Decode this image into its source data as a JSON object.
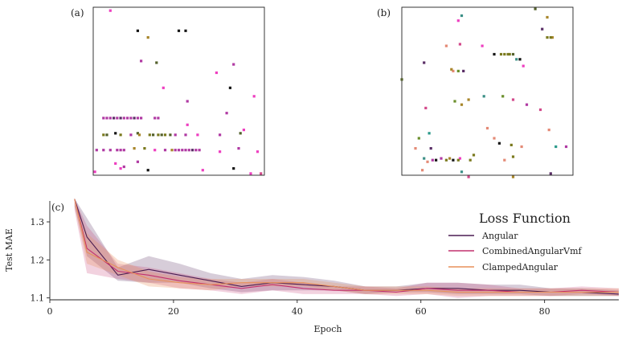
{
  "panels": {
    "a": {
      "label": "(a)"
    },
    "b": {
      "label": "(b)"
    },
    "c": {
      "label": "(c)"
    }
  },
  "colors": {
    "Angular": "#4b1d52",
    "CombinedAngularVmf": "#c2306f",
    "ClampedAngular": "#e8915a",
    "dot_palette": [
      "#b03aa3",
      "#ee3fc0",
      "#54612c",
      "#7b7a1f",
      "#141414",
      "#a8862b",
      "#3b8f86",
      "#e48a76",
      "#5a2e66",
      "#d34a8b",
      "#6b8f2c",
      "#2b9a8a"
    ]
  },
  "chart_data": [
    {
      "type": "scatter",
      "panel": "a",
      "title": "",
      "xlabel": "",
      "ylabel": "",
      "grid": false,
      "axes_visible": false,
      "xlim": [
        0,
        100
      ],
      "ylim": [
        0,
        100
      ],
      "points": [
        {
          "x": 10,
          "y": 98,
          "c": 1
        },
        {
          "x": 26,
          "y": 86,
          "c": 4
        },
        {
          "x": 50,
          "y": 86,
          "c": 4
        },
        {
          "x": 54,
          "y": 86,
          "c": 4
        },
        {
          "x": 32,
          "y": 82,
          "c": 5
        },
        {
          "x": 28,
          "y": 68,
          "c": 0
        },
        {
          "x": 37,
          "y": 67,
          "c": 2
        },
        {
          "x": 72,
          "y": 61,
          "c": 1
        },
        {
          "x": 82,
          "y": 66,
          "c": 0
        },
        {
          "x": 94,
          "y": 47,
          "c": 1
        },
        {
          "x": 80,
          "y": 52,
          "c": 4
        },
        {
          "x": 41,
          "y": 52,
          "c": 1
        },
        {
          "x": 55,
          "y": 44,
          "c": 0
        },
        {
          "x": 78,
          "y": 37,
          "c": 0
        },
        {
          "x": 6,
          "y": 34,
          "c": 0
        },
        {
          "x": 8,
          "y": 34,
          "c": 0
        },
        {
          "x": 10,
          "y": 34,
          "c": 0
        },
        {
          "x": 12,
          "y": 34,
          "c": 8
        },
        {
          "x": 14,
          "y": 34,
          "c": 0
        },
        {
          "x": 16,
          "y": 34,
          "c": 8
        },
        {
          "x": 18,
          "y": 34,
          "c": 0
        },
        {
          "x": 20,
          "y": 34,
          "c": 0
        },
        {
          "x": 22,
          "y": 34,
          "c": 0
        },
        {
          "x": 24,
          "y": 34,
          "c": 8
        },
        {
          "x": 26,
          "y": 34,
          "c": 0
        },
        {
          "x": 28,
          "y": 34,
          "c": 0
        },
        {
          "x": 36,
          "y": 34,
          "c": 0
        },
        {
          "x": 38,
          "y": 34,
          "c": 0
        },
        {
          "x": 55,
          "y": 30,
          "c": 1
        },
        {
          "x": 88,
          "y": 27,
          "c": 1
        },
        {
          "x": 6,
          "y": 24,
          "c": 3
        },
        {
          "x": 8,
          "y": 24,
          "c": 2
        },
        {
          "x": 13,
          "y": 25,
          "c": 4
        },
        {
          "x": 16,
          "y": 24,
          "c": 3
        },
        {
          "x": 22,
          "y": 24,
          "c": 0
        },
        {
          "x": 26,
          "y": 25,
          "c": 2
        },
        {
          "x": 27,
          "y": 24,
          "c": 5
        },
        {
          "x": 33,
          "y": 24,
          "c": 3
        },
        {
          "x": 35,
          "y": 24,
          "c": 2
        },
        {
          "x": 38,
          "y": 24,
          "c": 3
        },
        {
          "x": 40,
          "y": 24,
          "c": 2
        },
        {
          "x": 42,
          "y": 24,
          "c": 3
        },
        {
          "x": 45,
          "y": 24,
          "c": 2
        },
        {
          "x": 48,
          "y": 24,
          "c": 0
        },
        {
          "x": 54,
          "y": 24,
          "c": 0
        },
        {
          "x": 61,
          "y": 24,
          "c": 1
        },
        {
          "x": 74,
          "y": 24,
          "c": 0
        },
        {
          "x": 86,
          "y": 25,
          "c": 2
        },
        {
          "x": 2,
          "y": 15,
          "c": 0
        },
        {
          "x": 6,
          "y": 15,
          "c": 0
        },
        {
          "x": 10,
          "y": 15,
          "c": 0
        },
        {
          "x": 14,
          "y": 15,
          "c": 0
        },
        {
          "x": 16,
          "y": 15,
          "c": 0
        },
        {
          "x": 18,
          "y": 15,
          "c": 0
        },
        {
          "x": 24,
          "y": 16,
          "c": 5
        },
        {
          "x": 30,
          "y": 16,
          "c": 3
        },
        {
          "x": 36,
          "y": 15,
          "c": 1
        },
        {
          "x": 42,
          "y": 15,
          "c": 0
        },
        {
          "x": 46,
          "y": 15,
          "c": 5
        },
        {
          "x": 48,
          "y": 15,
          "c": 0
        },
        {
          "x": 50,
          "y": 15,
          "c": 0
        },
        {
          "x": 52,
          "y": 15,
          "c": 0
        },
        {
          "x": 54,
          "y": 15,
          "c": 0
        },
        {
          "x": 56,
          "y": 15,
          "c": 0
        },
        {
          "x": 58,
          "y": 15,
          "c": 8
        },
        {
          "x": 60,
          "y": 15,
          "c": 0
        },
        {
          "x": 62,
          "y": 15,
          "c": 0
        },
        {
          "x": 74,
          "y": 14,
          "c": 1
        },
        {
          "x": 85,
          "y": 16,
          "c": 0
        },
        {
          "x": 96,
          "y": 14,
          "c": 1
        },
        {
          "x": 13,
          "y": 7,
          "c": 1
        },
        {
          "x": 26,
          "y": 8,
          "c": 0
        },
        {
          "x": 16,
          "y": 4,
          "c": 1
        },
        {
          "x": 32,
          "y": 3,
          "c": 4
        },
        {
          "x": 64,
          "y": 3,
          "c": 1
        },
        {
          "x": 82,
          "y": 4,
          "c": 4
        },
        {
          "x": 92,
          "y": 1,
          "c": 1
        },
        {
          "x": 98,
          "y": 1,
          "c": 9
        },
        {
          "x": 18,
          "y": 5,
          "c": 0
        },
        {
          "x": 1,
          "y": 2,
          "c": 1
        }
      ]
    },
    {
      "type": "scatter",
      "panel": "b",
      "title": "",
      "xlabel": "",
      "ylabel": "",
      "grid": false,
      "axes_visible": false,
      "xlim": [
        0,
        100
      ],
      "ylim": [
        0,
        100
      ],
      "points": [
        {
          "x": 35,
          "y": 95,
          "c": 6
        },
        {
          "x": 33,
          "y": 92,
          "c": 1
        },
        {
          "x": 78,
          "y": 99,
          "c": 2
        },
        {
          "x": 85,
          "y": 94,
          "c": 5
        },
        {
          "x": 88,
          "y": 82,
          "c": 5
        },
        {
          "x": 85,
          "y": 82,
          "c": 3
        },
        {
          "x": 87,
          "y": 82,
          "c": 3
        },
        {
          "x": 82,
          "y": 87,
          "c": 8
        },
        {
          "x": 34,
          "y": 78,
          "c": 9
        },
        {
          "x": 26,
          "y": 77,
          "c": 7
        },
        {
          "x": 47,
          "y": 77,
          "c": 1
        },
        {
          "x": 58,
          "y": 72,
          "c": 3
        },
        {
          "x": 60,
          "y": 72,
          "c": 3
        },
        {
          "x": 62,
          "y": 72,
          "c": 3
        },
        {
          "x": 63,
          "y": 72,
          "c": 3
        },
        {
          "x": 65,
          "y": 72,
          "c": 2
        },
        {
          "x": 54,
          "y": 72,
          "c": 4
        },
        {
          "x": 67,
          "y": 69,
          "c": 6
        },
        {
          "x": 69,
          "y": 69,
          "c": 4
        },
        {
          "x": 71,
          "y": 65,
          "c": 1
        },
        {
          "x": 13,
          "y": 67,
          "c": 8
        },
        {
          "x": 30,
          "y": 62,
          "c": 7
        },
        {
          "x": 33,
          "y": 62,
          "c": 10
        },
        {
          "x": 36,
          "y": 62,
          "c": 8
        },
        {
          "x": 29,
          "y": 63,
          "c": 5
        },
        {
          "x": 0,
          "y": 57,
          "c": 2
        },
        {
          "x": 48,
          "y": 47,
          "c": 6
        },
        {
          "x": 59,
          "y": 47,
          "c": 10
        },
        {
          "x": 31,
          "y": 44,
          "c": 10
        },
        {
          "x": 35,
          "y": 42,
          "c": 5
        },
        {
          "x": 39,
          "y": 45,
          "c": 5
        },
        {
          "x": 65,
          "y": 45,
          "c": 9
        },
        {
          "x": 73,
          "y": 42,
          "c": 0
        },
        {
          "x": 14,
          "y": 40,
          "c": 9
        },
        {
          "x": 81,
          "y": 39,
          "c": 9
        },
        {
          "x": 50,
          "y": 28,
          "c": 7
        },
        {
          "x": 86,
          "y": 27,
          "c": 7
        },
        {
          "x": 10,
          "y": 22,
          "c": 10
        },
        {
          "x": 54,
          "y": 22,
          "c": 7
        },
        {
          "x": 16,
          "y": 25,
          "c": 11
        },
        {
          "x": 57,
          "y": 19,
          "c": 4
        },
        {
          "x": 64,
          "y": 18,
          "c": 3
        },
        {
          "x": 70,
          "y": 17,
          "c": 7
        },
        {
          "x": 90,
          "y": 17,
          "c": 11
        },
        {
          "x": 96,
          "y": 17,
          "c": 0
        },
        {
          "x": 17,
          "y": 16,
          "c": 8
        },
        {
          "x": 8,
          "y": 16,
          "c": 7
        },
        {
          "x": 42,
          "y": 12,
          "c": 3
        },
        {
          "x": 34,
          "y": 10,
          "c": 1
        },
        {
          "x": 18,
          "y": 9,
          "c": 0
        },
        {
          "x": 20,
          "y": 9,
          "c": 4
        },
        {
          "x": 23,
          "y": 10,
          "c": 0
        },
        {
          "x": 26,
          "y": 9,
          "c": 3
        },
        {
          "x": 28,
          "y": 10,
          "c": 5
        },
        {
          "x": 30,
          "y": 9,
          "c": 4
        },
        {
          "x": 33,
          "y": 9,
          "c": 3
        },
        {
          "x": 40,
          "y": 9,
          "c": 3
        },
        {
          "x": 60,
          "y": 9,
          "c": 7
        },
        {
          "x": 65,
          "y": 11,
          "c": 3
        },
        {
          "x": 13,
          "y": 10,
          "c": 6
        },
        {
          "x": 15,
          "y": 8,
          "c": 7
        },
        {
          "x": 12,
          "y": 3,
          "c": 7
        },
        {
          "x": 35,
          "y": 2,
          "c": 6
        },
        {
          "x": 65,
          "y": -1,
          "c": 5
        },
        {
          "x": 87,
          "y": 1,
          "c": 8
        },
        {
          "x": 39,
          "y": -1,
          "c": 9
        }
      ]
    },
    {
      "type": "line",
      "panel": "c",
      "title": "",
      "xlabel": "Epoch",
      "ylabel": "Test MAE",
      "xlim": [
        0,
        92
      ],
      "ylim": [
        1.095,
        1.355
      ],
      "xticks": [
        0,
        20,
        40,
        60,
        80
      ],
      "yticks": [
        1.1,
        1.2,
        1.3
      ],
      "ytick_labels": [
        "1.1",
        "1.2",
        "1.3"
      ],
      "grid": false,
      "legend": {
        "title": "Loss Function",
        "location": "right"
      },
      "x": [
        4,
        6,
        11,
        16,
        21,
        26,
        31,
        36,
        41,
        46,
        51,
        56,
        61,
        66,
        71,
        76,
        81,
        86,
        92
      ],
      "series": [
        {
          "name": "Angular",
          "values": [
            1.36,
            1.26,
            1.16,
            1.175,
            1.16,
            1.145,
            1.13,
            1.14,
            1.135,
            1.13,
            1.12,
            1.12,
            1.125,
            1.125,
            1.12,
            1.12,
            1.115,
            1.115,
            1.11
          ],
          "band_low": [
            1.34,
            1.21,
            1.145,
            1.14,
            1.14,
            1.125,
            1.115,
            1.12,
            1.12,
            1.12,
            1.11,
            1.115,
            1.115,
            1.11,
            1.11,
            1.11,
            1.105,
            1.105,
            1.105
          ],
          "band_high": [
            1.38,
            1.31,
            1.18,
            1.21,
            1.19,
            1.165,
            1.15,
            1.16,
            1.155,
            1.145,
            1.13,
            1.13,
            1.14,
            1.14,
            1.135,
            1.135,
            1.125,
            1.125,
            1.12
          ]
        },
        {
          "name": "CombinedAngularVmf",
          "values": [
            1.36,
            1.23,
            1.17,
            1.16,
            1.145,
            1.135,
            1.125,
            1.135,
            1.125,
            1.12,
            1.12,
            1.115,
            1.125,
            1.12,
            1.12,
            1.115,
            1.115,
            1.12,
            1.115
          ],
          "band_low": [
            1.33,
            1.165,
            1.15,
            1.14,
            1.125,
            1.12,
            1.11,
            1.12,
            1.11,
            1.11,
            1.11,
            1.105,
            1.11,
            1.1,
            1.105,
            1.105,
            1.105,
            1.11,
            1.105
          ],
          "band_high": [
            1.39,
            1.29,
            1.19,
            1.18,
            1.165,
            1.15,
            1.14,
            1.15,
            1.14,
            1.13,
            1.13,
            1.125,
            1.14,
            1.14,
            1.135,
            1.125,
            1.125,
            1.13,
            1.125
          ]
        },
        {
          "name": "ClampedAngular",
          "values": [
            1.36,
            1.22,
            1.18,
            1.15,
            1.14,
            1.135,
            1.14,
            1.14,
            1.14,
            1.13,
            1.12,
            1.12,
            1.12,
            1.115,
            1.115,
            1.115,
            1.115,
            1.115,
            1.115
          ],
          "band_low": [
            1.34,
            1.19,
            1.16,
            1.13,
            1.125,
            1.12,
            1.13,
            1.13,
            1.13,
            1.12,
            1.11,
            1.11,
            1.11,
            1.105,
            1.105,
            1.105,
            1.105,
            1.105,
            1.105
          ],
          "band_high": [
            1.38,
            1.27,
            1.2,
            1.17,
            1.155,
            1.15,
            1.15,
            1.15,
            1.15,
            1.14,
            1.13,
            1.13,
            1.13,
            1.125,
            1.125,
            1.125,
            1.125,
            1.125,
            1.125
          ]
        }
      ]
    }
  ]
}
